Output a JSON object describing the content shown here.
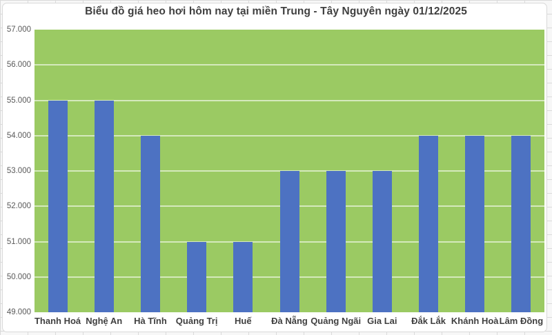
{
  "chart_data": {
    "type": "bar",
    "title": "Biểu đồ giá heo hơi hôm nay tại miền Trung - Tây Nguyên ngày 01/12/2025",
    "categories": [
      "Thanh Hoá",
      "Nghệ An",
      "Hà Tĩnh",
      "Quảng Trị",
      "Huế",
      "Đà Nẵng",
      "Quảng Ngãi",
      "Gia Lai",
      "Đắk Lắk",
      "Khánh Hoà",
      "Lâm Đồng"
    ],
    "values": [
      55000,
      55000,
      54000,
      51000,
      51000,
      53000,
      53000,
      53000,
      54000,
      54000,
      54000
    ],
    "xlabel": "",
    "ylabel": "",
    "ylim": [
      49000,
      57000
    ],
    "ytick_step": 1000,
    "ytick_labels_top_to_bottom": [
      "57.000",
      "56.000",
      "55.000",
      "54.000",
      "53.000",
      "52.000",
      "51.000",
      "50.000",
      "49.000"
    ],
    "grid": true,
    "legend": false,
    "colors": {
      "bar_fill": "#4d72c2",
      "plot_background": "#9bca63",
      "gridline": "rgba(255,255,255,0.58)",
      "title_text": "#3f3f3f",
      "ytick_text": "#595959",
      "xtick_text": "#404040",
      "card_border": "#d9d9d9",
      "card_background": "#ffffff"
    }
  }
}
